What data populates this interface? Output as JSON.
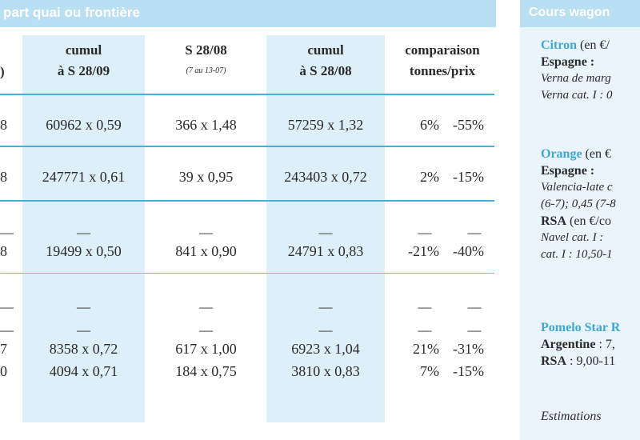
{
  "section_title": "part quai ou frontière",
  "headers": {
    "col0": ")",
    "col1": "cumul\nà S 28/09",
    "col2": "S 28/08",
    "col2_sub": "(7 au 13-07)",
    "col3": "cumul\nà S 28/08",
    "col4": "comparaison\ntonnes/prix"
  },
  "rows": [
    {
      "lead": "8",
      "c1": "60962 x 0,59",
      "c2": "366 x 1,48",
      "c3": "57259 x 1,32",
      "pt": "6%",
      "pp": "-55%"
    },
    {
      "lead": "8",
      "c1": "247771 x 0,61",
      "c2": "39 x 0,95",
      "c3": "243403 x 0,72",
      "pt": "2%",
      "pp": "-15%"
    },
    {
      "lead": "8",
      "c1": "19499 x 0,50",
      "c2": "841 x 0,90",
      "c3": "24791 x 0,83",
      "pt": "-21%",
      "pp": "-40%"
    },
    {
      "lead": "7",
      "c1": "8358 x 0,72",
      "c2": "617 x 1,00",
      "c3": "6923 x 1,04",
      "pt": "21%",
      "pp": "-31%"
    },
    {
      "lead": "0",
      "c1": "4094 x 0,71",
      "c2": "184 x 0,75",
      "c3": "3810 x 0,83",
      "pt": "7%",
      "pp": "-15%"
    }
  ],
  "dash": "—",
  "sidebar": {
    "title": "Cours wagon",
    "citron": {
      "name": "Citron",
      "unit": " (en €/",
      "origin": "Espagne :",
      "l1": "Verna de marg",
      "l2": "Verna cat. I : 0"
    },
    "orange": {
      "name": "Orange",
      "unit": " (en €",
      "origin": "Espagne :",
      "l1": "Valencia-late c",
      "l2": "(6-7); 0,45 (7-8",
      "rsa": "RSA",
      "rsa_unit": " (en €/co",
      "l3": "Navel  cat. I :",
      "l4": "cat. I : 10,50-1"
    },
    "pomelo": {
      "name": "Pomelo Star R",
      "a_label": "Argentine",
      "a_val": " : 7,",
      "r_label": "RSA",
      "r_val": " : 9,00-11"
    },
    "footnote": "Estimations"
  }
}
